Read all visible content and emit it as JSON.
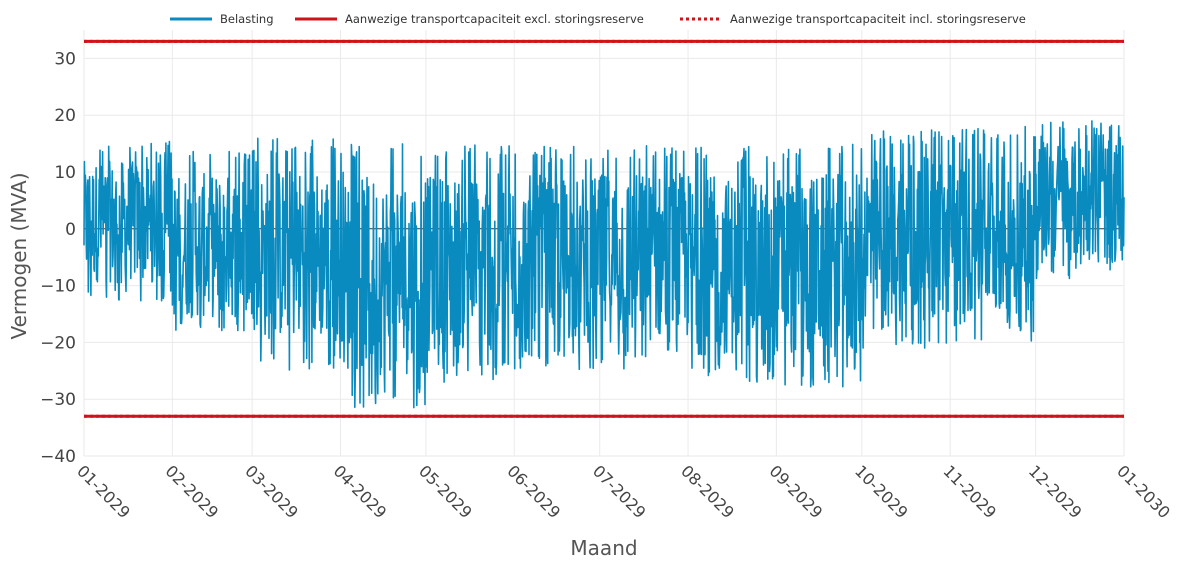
{
  "chart_data": {
    "type": "line",
    "title": "",
    "xlabel": "Maand",
    "ylabel": "Vermogen (MVA)",
    "ylim": [
      -40,
      35
    ],
    "xlim": [
      "2029-01-01",
      "2030-01-01"
    ],
    "yticks": [
      -40,
      -30,
      -20,
      -10,
      0,
      10,
      20,
      30
    ],
    "yticklabels": [
      "−40",
      "−30",
      "−20",
      "−10",
      "0",
      "10",
      "20",
      "30"
    ],
    "xticks": [
      "2029-01-01",
      "2029-02-01",
      "2029-03-01",
      "2029-04-01",
      "2029-05-01",
      "2029-06-01",
      "2029-07-01",
      "2029-08-01",
      "2029-09-01",
      "2029-10-01",
      "2029-11-01",
      "2029-12-01",
      "2030-01-01"
    ],
    "xticklabels": [
      "01-2029",
      "02-2029",
      "03-2029",
      "04-2029",
      "05-2029",
      "06-2029",
      "07-2029",
      "08-2029",
      "09-2029",
      "10-2029",
      "11-2029",
      "12-2029",
      "01-2030"
    ],
    "grid": true,
    "legend_position": "top",
    "series": [
      {
        "name": "Belasting",
        "color": "#0a8bc0",
        "style": "solid",
        "envelope": [
          {
            "month": "2029-01",
            "max": 15.5,
            "min": -13.0
          },
          {
            "month": "2029-02",
            "max": 14.0,
            "min": -20.0
          },
          {
            "month": "2029-03",
            "max": 16.0,
            "min": -25.0
          },
          {
            "month": "2029-04",
            "max": 15.0,
            "min": -31.5
          },
          {
            "month": "2029-05",
            "max": 15.0,
            "min": -27.0
          },
          {
            "month": "2029-06",
            "max": 14.5,
            "min": -25.0
          },
          {
            "month": "2029-07",
            "max": 15.0,
            "min": -25.0
          },
          {
            "month": "2029-08",
            "max": 14.5,
            "min": -27.5
          },
          {
            "month": "2029-09",
            "max": 15.0,
            "min": -28.0
          },
          {
            "month": "2029-10",
            "max": 17.5,
            "min": -21.0
          },
          {
            "month": "2029-11",
            "max": 18.0,
            "min": -20.0
          },
          {
            "month": "2029-12",
            "max": 19.0,
            "min": -9.0
          }
        ]
      },
      {
        "name": "Aanwezige transportcapaciteit excl. storingsreserve",
        "color": "#d0121b",
        "style": "solid",
        "values": [
          33,
          -33
        ]
      },
      {
        "name": "Aanwezige transportcapaciteit incl. storingsreserve",
        "color": "#d0121b",
        "style": "dotted",
        "values": [
          33,
          -33
        ]
      }
    ]
  }
}
